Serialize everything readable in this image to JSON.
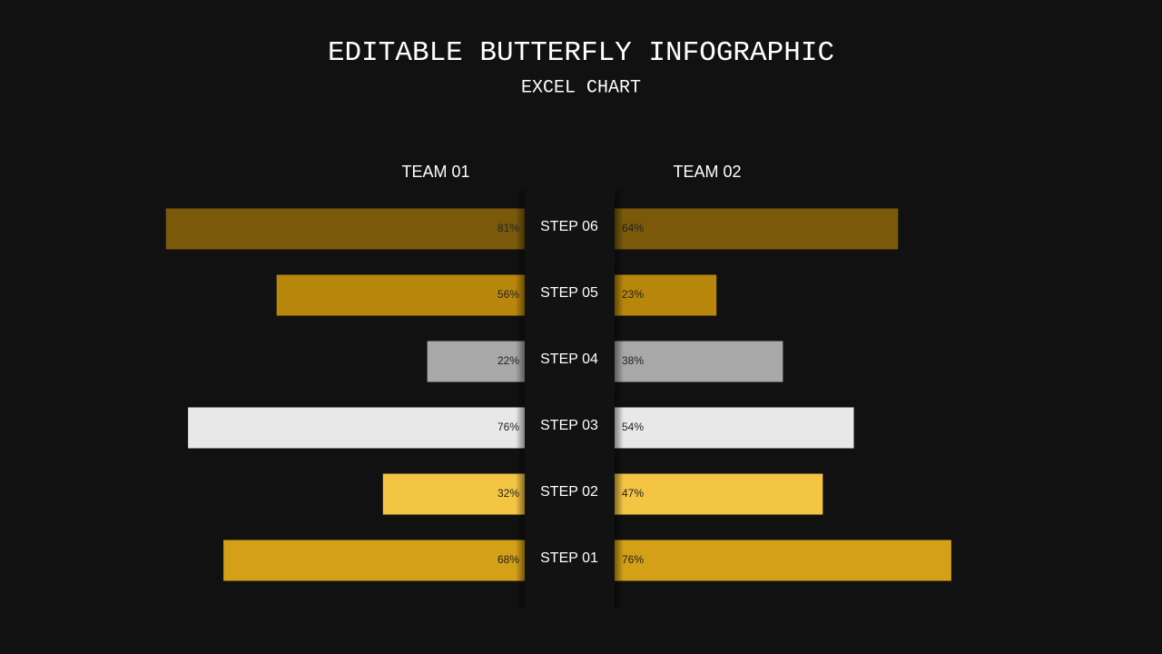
{
  "chart_data": {
    "type": "butterfly",
    "title": "EDITABLE BUTTERFLY INFOGRAPHIC",
    "subtitle": "EXCEL CHART",
    "categories": [
      "STEP 06",
      "STEP 05",
      "STEP 04",
      "STEP 03",
      "STEP 02",
      "STEP 01"
    ],
    "colors": [
      "#7a5a0a",
      "#b8860b",
      "#a8a8a8",
      "#e8e8e8",
      "#f4c542",
      "#d4a017"
    ],
    "series": [
      {
        "name": "TEAM 01",
        "values": [
          81,
          56,
          22,
          76,
          32,
          68
        ],
        "value_labels": [
          "81%",
          "56%",
          "22%",
          "76%",
          "32%",
          "68%"
        ]
      },
      {
        "name": "TEAM 02",
        "values": [
          64,
          23,
          38,
          54,
          47,
          76
        ],
        "value_labels": [
          "64%",
          "23%",
          "38%",
          "54%",
          "47%",
          "76%"
        ]
      }
    ]
  }
}
